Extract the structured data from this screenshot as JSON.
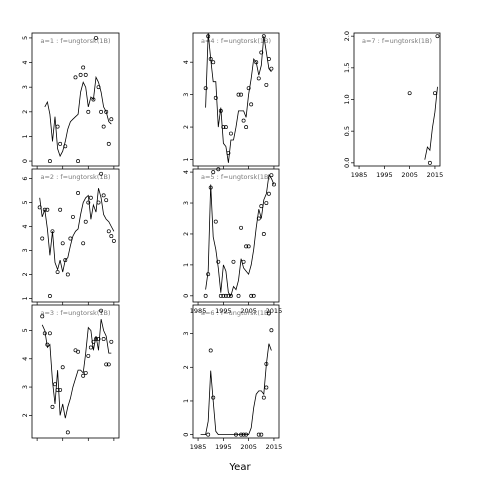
{
  "chart_data": {
    "type": "scatter",
    "xlabel": "Year",
    "panels": [
      {
        "label": "a=1 : f=ungtorsk(1B)",
        "ylim": [
          -0.2,
          5.2
        ],
        "yticks": [
          0,
          1,
          2,
          3,
          4,
          5
        ],
        "points": [
          [
            1990,
            0
          ],
          [
            1993,
            1.4
          ],
          [
            1994,
            0.7
          ],
          [
            1996,
            0.6
          ],
          [
            2000,
            3.4
          ],
          [
            2001,
            0
          ],
          [
            2002,
            3.5
          ],
          [
            2003,
            3.8
          ],
          [
            2004,
            3.5
          ],
          [
            2005,
            2
          ],
          [
            2007,
            2.5
          ],
          [
            2008,
            5
          ],
          [
            2009,
            3
          ],
          [
            2010,
            2
          ],
          [
            2011,
            1.4
          ],
          [
            2012,
            2
          ],
          [
            2013,
            0.7
          ],
          [
            2014,
            1.7
          ]
        ],
        "fit": [
          [
            1988,
            2.2
          ],
          [
            1989,
            2.4
          ],
          [
            1990,
            1.9
          ],
          [
            1991,
            0.8
          ],
          [
            1992,
            1.8
          ],
          [
            1993,
            0.5
          ],
          [
            1994,
            0.2
          ],
          [
            1995,
            0.4
          ],
          [
            1996,
            0.8
          ],
          [
            1997,
            1.3
          ],
          [
            1998,
            1.6
          ],
          [
            1999,
            1.7
          ],
          [
            2000,
            1.8
          ],
          [
            2001,
            1.9
          ],
          [
            2002,
            2.8
          ],
          [
            2003,
            3.2
          ],
          [
            2004,
            3.0
          ],
          [
            2005,
            2.2
          ],
          [
            2006,
            2.6
          ],
          [
            2007,
            2.5
          ],
          [
            2008,
            3.4
          ],
          [
            2009,
            3.2
          ],
          [
            2010,
            2.8
          ],
          [
            2011,
            2.2
          ],
          [
            2012,
            2.0
          ],
          [
            2013,
            1.6
          ],
          [
            2014,
            1.5
          ]
        ]
      },
      {
        "label": "a=4 : f=ungtorsk(1B)",
        "ylim": [
          0.8,
          4.9
        ],
        "yticks": [
          1,
          2,
          3,
          4
        ],
        "points": [
          [
            1988,
            3.2
          ],
          [
            1989,
            4.8
          ],
          [
            1990,
            4.1
          ],
          [
            1991,
            4
          ],
          [
            1992,
            2.9
          ],
          [
            1993,
            0.7
          ],
          [
            1994,
            2.5
          ],
          [
            1995,
            2
          ],
          [
            1996,
            2
          ],
          [
            1997,
            1.2
          ],
          [
            1998,
            1.8
          ],
          [
            2001,
            3
          ],
          [
            2002,
            3
          ],
          [
            2003,
            2.2
          ],
          [
            2004,
            2
          ],
          [
            2005,
            3.2
          ],
          [
            2006,
            2.7
          ],
          [
            2008,
            4
          ],
          [
            2009,
            3.5
          ],
          [
            2010,
            4.3
          ],
          [
            2011,
            4.8
          ],
          [
            2012,
            3.3
          ],
          [
            2013,
            4.1
          ],
          [
            2014,
            3.8
          ]
        ],
        "fit": [
          [
            1988,
            2.6
          ],
          [
            1989,
            4.9
          ],
          [
            1990,
            4.1
          ],
          [
            1991,
            3.4
          ],
          [
            1992,
            3.4
          ],
          [
            1993,
            2.0
          ],
          [
            1994,
            2.6
          ],
          [
            1995,
            1.5
          ],
          [
            1996,
            1.4
          ],
          [
            1997,
            0.9
          ],
          [
            1998,
            1.6
          ],
          [
            1999,
            1.6
          ],
          [
            2000,
            2.0
          ],
          [
            2001,
            2.5
          ],
          [
            2002,
            2.5
          ],
          [
            2003,
            2.5
          ],
          [
            2004,
            2.3
          ],
          [
            2005,
            3.0
          ],
          [
            2006,
            3.5
          ],
          [
            2007,
            4.1
          ],
          [
            2008,
            4.0
          ],
          [
            2009,
            3.6
          ],
          [
            2010,
            3.9
          ],
          [
            2011,
            4.8
          ],
          [
            2012,
            4.3
          ],
          [
            2013,
            3.8
          ],
          [
            2014,
            3.7
          ]
        ]
      },
      {
        "label": "a=7 : f=ungtorsk(1B)",
        "ylim": [
          -0.05,
          2.05
        ],
        "yticks": [
          0.0,
          0.5,
          1.0,
          1.5,
          2.0
        ],
        "points": [
          [
            2005,
            1.1
          ],
          [
            2013,
            0
          ],
          [
            2015,
            1.1
          ],
          [
            2016,
            2
          ]
        ],
        "fit": [
          [
            2011,
            0.05
          ],
          [
            2012,
            0.25
          ],
          [
            2013,
            0.2
          ],
          [
            2014,
            0.55
          ],
          [
            2015,
            0.8
          ],
          [
            2016,
            1.2
          ]
        ]
      },
      {
        "label": "a=2 : f=ungtorsk(1B)",
        "ylim": [
          0.85,
          6.4
        ],
        "yticks": [
          1,
          2,
          3,
          4,
          5,
          6
        ],
        "points": [
          [
            1986,
            4.8
          ],
          [
            1987,
            3.5
          ],
          [
            1988,
            4.7
          ],
          [
            1989,
            4.7
          ],
          [
            1990,
            1.1
          ],
          [
            1991,
            3.8
          ],
          [
            1993,
            2.1
          ],
          [
            1994,
            4.7
          ],
          [
            1995,
            3.3
          ],
          [
            1996,
            2.6
          ],
          [
            1997,
            2.0
          ],
          [
            1998,
            3.5
          ],
          [
            1999,
            4.4
          ],
          [
            2001,
            5.4
          ],
          [
            2003,
            3.3
          ],
          [
            2004,
            4.2
          ],
          [
            2005,
            5.0
          ],
          [
            2006,
            5.2
          ],
          [
            2009,
            5.0
          ],
          [
            2010,
            6.2
          ],
          [
            2011,
            5.3
          ],
          [
            2012,
            5.1
          ],
          [
            2013,
            3.8
          ],
          [
            2014,
            3.6
          ],
          [
            2015,
            3.4
          ]
        ],
        "fit": [
          [
            1986,
            5.2
          ],
          [
            1987,
            4.4
          ],
          [
            1988,
            4.7
          ],
          [
            1989,
            3.9
          ],
          [
            1990,
            2.8
          ],
          [
            1991,
            3.8
          ],
          [
            1992,
            2.5
          ],
          [
            1993,
            2.2
          ],
          [
            1994,
            2.6
          ],
          [
            1995,
            2.1
          ],
          [
            1996,
            2.6
          ],
          [
            1997,
            2.7
          ],
          [
            1998,
            3.2
          ],
          [
            1999,
            3.6
          ],
          [
            2000,
            3.8
          ],
          [
            2001,
            3.9
          ],
          [
            2002,
            4.5
          ],
          [
            2003,
            5.0
          ],
          [
            2004,
            5.2
          ],
          [
            2005,
            5.3
          ],
          [
            2006,
            4.3
          ],
          [
            2007,
            4.9
          ],
          [
            2008,
            4.6
          ],
          [
            2009,
            5.6
          ],
          [
            2010,
            5.2
          ],
          [
            2011,
            4.5
          ],
          [
            2012,
            4.3
          ],
          [
            2013,
            4.2
          ],
          [
            2014,
            4.0
          ],
          [
            2015,
            3.8
          ]
        ]
      },
      {
        "label": "a=5 : f=ungtorsk(1B)",
        "ylim": [
          -0.2,
          4.1
        ],
        "yticks": [
          0,
          1,
          2,
          3,
          4
        ],
        "points": [
          [
            1988,
            0
          ],
          [
            1989,
            0.7
          ],
          [
            1990,
            3.5
          ],
          [
            1991,
            4
          ],
          [
            1992,
            2.4
          ],
          [
            1993,
            1.1
          ],
          [
            1994,
            0
          ],
          [
            1995,
            0
          ],
          [
            1996,
            0
          ],
          [
            1997,
            0
          ],
          [
            1998,
            0
          ],
          [
            1999,
            1.1
          ],
          [
            2001,
            0
          ],
          [
            2002,
            2.2
          ],
          [
            2003,
            1.1
          ],
          [
            2004,
            1.6
          ],
          [
            2005,
            1.6
          ],
          [
            2006,
            0
          ],
          [
            2007,
            0
          ],
          [
            2009,
            2.5
          ],
          [
            2010,
            2.9
          ],
          [
            2011,
            2.0
          ],
          [
            2012,
            3.0
          ],
          [
            2013,
            3.3
          ],
          [
            2014,
            3.9
          ],
          [
            2015,
            3.6
          ]
        ],
        "fit": [
          [
            1988,
            0.2
          ],
          [
            1989,
            0.8
          ],
          [
            1990,
            3.6
          ],
          [
            1991,
            1.9
          ],
          [
            1992,
            1.5
          ],
          [
            1993,
            0.9
          ],
          [
            1994,
            0.1
          ],
          [
            1995,
            1.0
          ],
          [
            1996,
            0.8
          ],
          [
            1997,
            0.1
          ],
          [
            1998,
            0.0
          ],
          [
            1999,
            0.3
          ],
          [
            2000,
            0.2
          ],
          [
            2001,
            0.5
          ],
          [
            2002,
            1.2
          ],
          [
            2003,
            0.9
          ],
          [
            2004,
            0.8
          ],
          [
            2005,
            0.7
          ],
          [
            2006,
            1.0
          ],
          [
            2007,
            1.5
          ],
          [
            2008,
            2.2
          ],
          [
            2009,
            2.8
          ],
          [
            2010,
            2.5
          ],
          [
            2011,
            3.1
          ],
          [
            2012,
            3.3
          ],
          [
            2013,
            3.9
          ],
          [
            2014,
            3.8
          ],
          [
            2015,
            3.6
          ]
        ]
      },
      {
        "label": "a=3 : f=ungtorsk(1B)",
        "ylim": [
          1.2,
          5.9
        ],
        "yticks": [
          2,
          3,
          4,
          5
        ],
        "points": [
          [
            1987,
            5.5
          ],
          [
            1988,
            4.9
          ],
          [
            1989,
            4.5
          ],
          [
            1990,
            4.9
          ],
          [
            1991,
            2.3
          ],
          [
            1992,
            3.1
          ],
          [
            1993,
            2.9
          ],
          [
            1994,
            2.9
          ],
          [
            1995,
            3.7
          ],
          [
            1997,
            1.4
          ],
          [
            2000,
            4.3
          ],
          [
            2001,
            4.25
          ],
          [
            2003,
            3.4
          ],
          [
            2004,
            3.5
          ],
          [
            2005,
            4.1
          ],
          [
            2006,
            4.4
          ],
          [
            2007,
            4.6
          ],
          [
            2008,
            4.7
          ],
          [
            2009,
            4.7
          ],
          [
            2010,
            5.7
          ],
          [
            2011,
            4.7
          ],
          [
            2012,
            3.8
          ],
          [
            2013,
            3.8
          ],
          [
            2014,
            4.6
          ]
        ],
        "fit": [
          [
            1987,
            5.2
          ],
          [
            1988,
            5.0
          ],
          [
            1989,
            4.4
          ],
          [
            1990,
            4.5
          ],
          [
            1991,
            3.2
          ],
          [
            1992,
            2.4
          ],
          [
            1993,
            3.6
          ],
          [
            1994,
            2.0
          ],
          [
            1995,
            2.4
          ],
          [
            1996,
            1.9
          ],
          [
            1997,
            2.3
          ],
          [
            1998,
            2.6
          ],
          [
            1999,
            3.0
          ],
          [
            2000,
            3.3
          ],
          [
            2001,
            3.6
          ],
          [
            2002,
            3.6
          ],
          [
            2003,
            3.5
          ],
          [
            2004,
            4.2
          ],
          [
            2005,
            5.1
          ],
          [
            2006,
            5.0
          ],
          [
            2007,
            4.3
          ],
          [
            2008,
            4.8
          ],
          [
            2009,
            4.3
          ],
          [
            2010,
            5.4
          ],
          [
            2011,
            5.0
          ],
          [
            2012,
            4.8
          ],
          [
            2013,
            4.2
          ],
          [
            2014,
            4.2
          ]
        ]
      },
      {
        "label": "a=6 : f=ungtorsk(1B)",
        "ylim": [
          -0.1,
          3.85
        ],
        "yticks": [
          0,
          1,
          2,
          3
        ],
        "points": [
          [
            1989,
            0
          ],
          [
            1990,
            2.5
          ],
          [
            1991,
            1.1
          ],
          [
            2000,
            0
          ],
          [
            2002,
            0
          ],
          [
            2003,
            0
          ],
          [
            2004,
            0
          ],
          [
            2009,
            0
          ],
          [
            2010,
            0
          ],
          [
            2011,
            1.1
          ],
          [
            2012,
            1.4
          ],
          [
            2012,
            2.1
          ],
          [
            2013,
            3.6
          ],
          [
            2014,
            3.1
          ]
        ],
        "fit": [
          [
            1986,
            0.0
          ],
          [
            1987,
            0.0
          ],
          [
            1988,
            0.0
          ],
          [
            1989,
            0.4
          ],
          [
            1990,
            1.9
          ],
          [
            1991,
            1.0
          ],
          [
            1992,
            0.1
          ],
          [
            1993,
            0.0
          ],
          [
            2000,
            0.0
          ],
          [
            2005,
            0.0
          ],
          [
            2006,
            0.2
          ],
          [
            2007,
            0.8
          ],
          [
            2008,
            1.2
          ],
          [
            2009,
            1.3
          ],
          [
            2010,
            1.3
          ],
          [
            2011,
            1.2
          ],
          [
            2012,
            2.1
          ],
          [
            2013,
            2.7
          ],
          [
            2014,
            2.5
          ]
        ]
      }
    ],
    "xticks": [
      1985,
      1995,
      2005,
      2015
    ],
    "xlim": [
      1983,
      2017
    ]
  }
}
